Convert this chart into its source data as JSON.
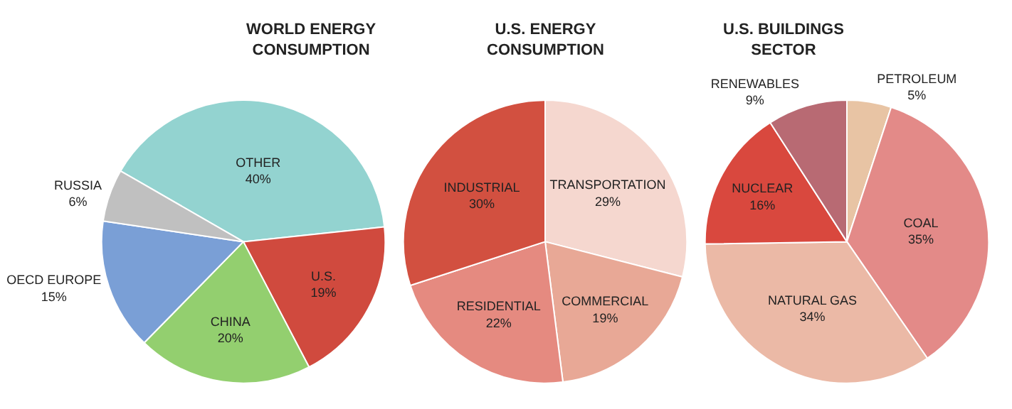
{
  "chart_data": [
    {
      "type": "pie",
      "title": "WORLD ENERGY CONSUMPTION",
      "categories": [
        "OTHER",
        "U.S.",
        "CHINA",
        "OECD EUROPE",
        "RUSSIA"
      ],
      "values": [
        40,
        19,
        20,
        15,
        6
      ],
      "value_labels": [
        "40%",
        "19%",
        "20%",
        "15%",
        "6%"
      ],
      "colors": [
        "#93d3d0",
        "#d04a3e",
        "#93cf6f",
        "#7a9fd6",
        "#c0c0c0"
      ]
    },
    {
      "type": "pie",
      "title": "U.S. ENERGY CONSUMPTION",
      "categories": [
        "TRANSPORTATION",
        "COMMERCIAL",
        "RESIDENTIAL",
        "INDUSTRIAL"
      ],
      "values": [
        29,
        19,
        22,
        30
      ],
      "value_labels": [
        "29%",
        "19%",
        "22%",
        "30%"
      ],
      "colors": [
        "#f5d7cf",
        "#e8a896",
        "#e58a80",
        "#d25040"
      ]
    },
    {
      "type": "pie",
      "title": "U.S. BUILDINGS SECTOR",
      "categories": [
        "PETROLEUM",
        "COAL",
        "NATURAL GAS",
        "NUCLEAR",
        "RENEWABLES"
      ],
      "values": [
        5,
        35,
        34,
        16,
        9
      ],
      "value_labels": [
        "5%",
        "35%",
        "34%",
        "16%",
        "9%"
      ],
      "colors": [
        "#e8c4a4",
        "#e38a88",
        "#ebb9a6",
        "#d9483e",
        "#b86a73"
      ]
    }
  ]
}
